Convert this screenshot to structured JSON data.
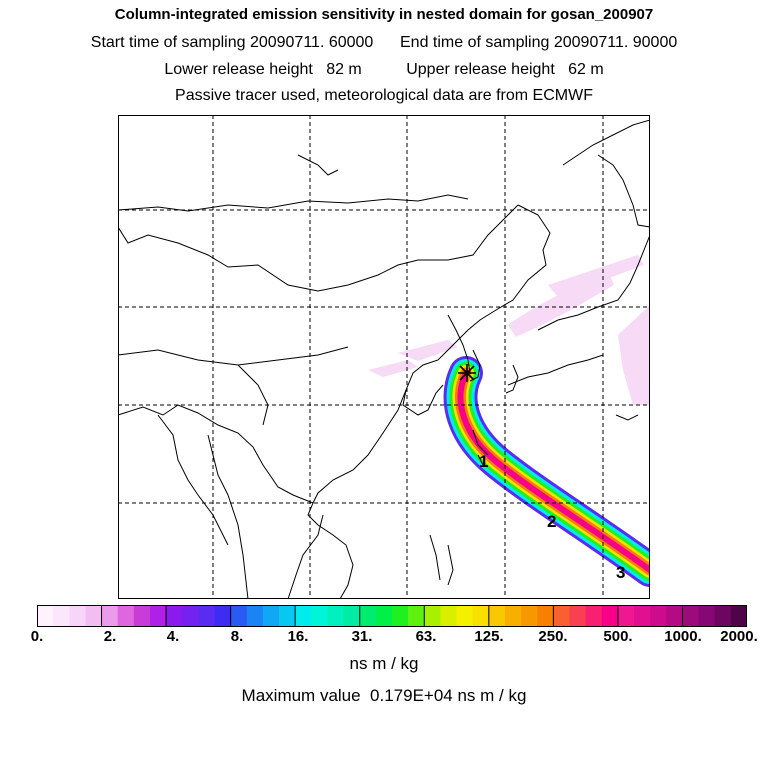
{
  "title": "Column-integrated emission sensitivity in nested domain for gosan_200907",
  "sampling": {
    "start": "Start time of sampling 20090711. 60000",
    "end": "End time of sampling 20090711. 90000"
  },
  "release": {
    "lower": "Lower release height   82 m",
    "upper": "Upper release height   62 m"
  },
  "tracer_note": "Passive tracer used, meteorological data are from ECMWF",
  "map": {
    "day_markers": [
      "1",
      "2",
      "3"
    ],
    "receptor_symbol": "*"
  },
  "colorbar": {
    "tick_labels": [
      "0.",
      "2.",
      "4.",
      "8.",
      "16.",
      "31.",
      "63.",
      "125.",
      "250.",
      "500.",
      "1000.",
      "2000."
    ],
    "colors": [
      "#fdf2fd",
      "#fbe6fb",
      "#f8d5f8",
      "#f2bef2",
      "#ea9cea",
      "#de66de",
      "#c83cd8",
      "#b020e6",
      "#8a1aee",
      "#7422f0",
      "#5a2cf2",
      "#3f2cf2",
      "#2a5af2",
      "#1a84f4",
      "#10a8f4",
      "#08c8f2",
      "#00ecec",
      "#00f4d6",
      "#00f0c0",
      "#00eca4",
      "#00ec70",
      "#00f048",
      "#20f020",
      "#60f010",
      "#a8f000",
      "#d8f000",
      "#f4f000",
      "#f8e000",
      "#f8c800",
      "#f8b000",
      "#f89800",
      "#f88000",
      "#f86030",
      "#f84050",
      "#f82070",
      "#f8008a",
      "#f01890",
      "#e01090",
      "#cc0c8c",
      "#b40a84",
      "#9c0a7c",
      "#860874",
      "#6c0660",
      "#500448"
    ],
    "units": "ns m / kg"
  },
  "max_value": "Maximum value  0.179E+04 ns m / kg"
}
